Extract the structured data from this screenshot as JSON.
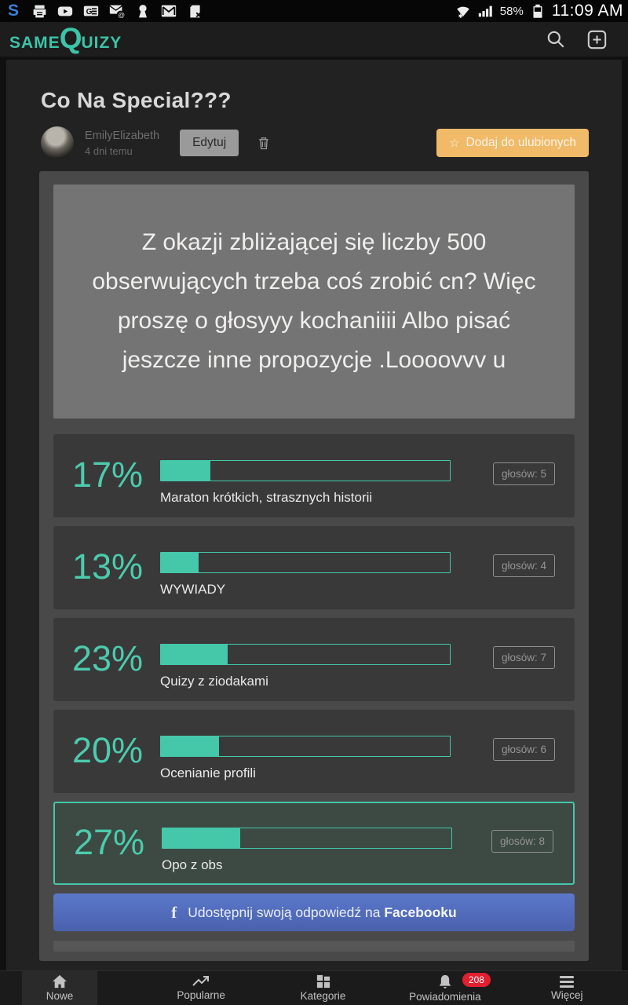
{
  "status_bar": {
    "time": "11:09 AM",
    "battery_percent": "58%",
    "left_icons": [
      "skype",
      "printer",
      "youtube",
      "translate",
      "email-at",
      "keyhole",
      "gmail",
      "sim-removed"
    ]
  },
  "header": {
    "logo_prefix": "SAME",
    "logo_q": "Q",
    "logo_suffix": "UIZY"
  },
  "post": {
    "title": "Co Na Special???",
    "author": "EmilyElizabeth",
    "posted_ago": "4 dni temu",
    "edit_button": "Edytuj",
    "favorite_star": "☆",
    "favorite_button": "Dodaj do ulubionych",
    "question": "Z okazji zbliżającej się liczby 500 obserwujących trzeba coś zrobić cn? Więc proszę o głosyyy kochaniiii Albo pisać jeszcze inne propozycje .Loooovvv u"
  },
  "poll": {
    "options": [
      {
        "percent": "17%",
        "fill": 17,
        "label": "Maraton krótkich, strasznych historii",
        "votes": "głosów: 5",
        "selected": false
      },
      {
        "percent": "13%",
        "fill": 13,
        "label": "WYWIADY",
        "votes": "głosów: 4",
        "selected": false
      },
      {
        "percent": "23%",
        "fill": 23,
        "label": "Quizy z ziodakami",
        "votes": "głosów: 7",
        "selected": false
      },
      {
        "percent": "20%",
        "fill": 20,
        "label": "Ocenianie profili",
        "votes": "głosów: 6",
        "selected": false
      },
      {
        "percent": "27%",
        "fill": 27,
        "label": "Opo z obs",
        "votes": "głosów: 8",
        "selected": true
      }
    ]
  },
  "share": {
    "fb_letter": "f",
    "prefix": "Udostępnij swoją odpowiedź na",
    "bold": "Facebooku"
  },
  "bottom_nav": {
    "items": [
      {
        "label": "Nowe"
      },
      {
        "label": "Popularne"
      },
      {
        "label": "Kategorie"
      },
      {
        "label": "Powiadomienia"
      },
      {
        "label": "Więcej"
      }
    ],
    "notifications_badge": "208"
  },
  "colors": {
    "accent_teal": "#45c7aa",
    "favorite_orange": "#f0ba69",
    "facebook_blue": "#5b78ca",
    "badge_red": "#e01f2f",
    "question_gray": "#747474"
  }
}
